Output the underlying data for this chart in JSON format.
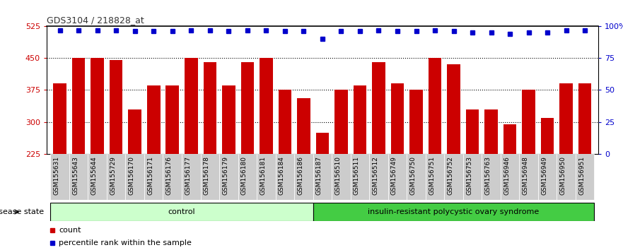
{
  "title": "GDS3104 / 218828_at",
  "samples": [
    "GSM155631",
    "GSM155643",
    "GSM155644",
    "GSM155729",
    "GSM156170",
    "GSM156171",
    "GSM156176",
    "GSM156177",
    "GSM156178",
    "GSM156179",
    "GSM156180",
    "GSM156181",
    "GSM156184",
    "GSM156186",
    "GSM156187",
    "GSM156510",
    "GSM156511",
    "GSM156512",
    "GSM156749",
    "GSM156750",
    "GSM156751",
    "GSM156752",
    "GSM156753",
    "GSM156763",
    "GSM156946",
    "GSM156948",
    "GSM156949",
    "GSM156950",
    "GSM156951"
  ],
  "counts": [
    390,
    450,
    450,
    445,
    330,
    385,
    385,
    450,
    440,
    385,
    440,
    450,
    375,
    355,
    275,
    375,
    385,
    440,
    390,
    375,
    450,
    435,
    330,
    330,
    295,
    375,
    310,
    390,
    390
  ],
  "percentile_ranks": [
    97,
    97,
    97,
    97,
    96,
    96,
    96,
    97,
    97,
    96,
    97,
    97,
    96,
    96,
    90,
    96,
    96,
    97,
    96,
    96,
    97,
    96,
    95,
    95,
    94,
    95,
    95,
    97,
    97
  ],
  "control_count": 14,
  "y_min": 225,
  "y_max": 525,
  "y_ticks_left": [
    225,
    300,
    375,
    450,
    525
  ],
  "y_ticks_right_vals": [
    0,
    25,
    50,
    75,
    100
  ],
  "y_ticks_right_labels": [
    "0",
    "25",
    "50",
    "75",
    "100%"
  ],
  "bar_color": "#cc0000",
  "dot_color": "#0000cc",
  "control_color": "#ccffcc",
  "disease_color": "#44cc44",
  "control_label": "control",
  "disease_label": "insulin-resistant polycystic ovary syndrome",
  "legend_count_label": "count",
  "legend_pct_label": "percentile rank within the sample",
  "left_tick_color": "#cc0000",
  "right_tick_color": "#0000cc",
  "xtick_bg_color": "#cccccc"
}
